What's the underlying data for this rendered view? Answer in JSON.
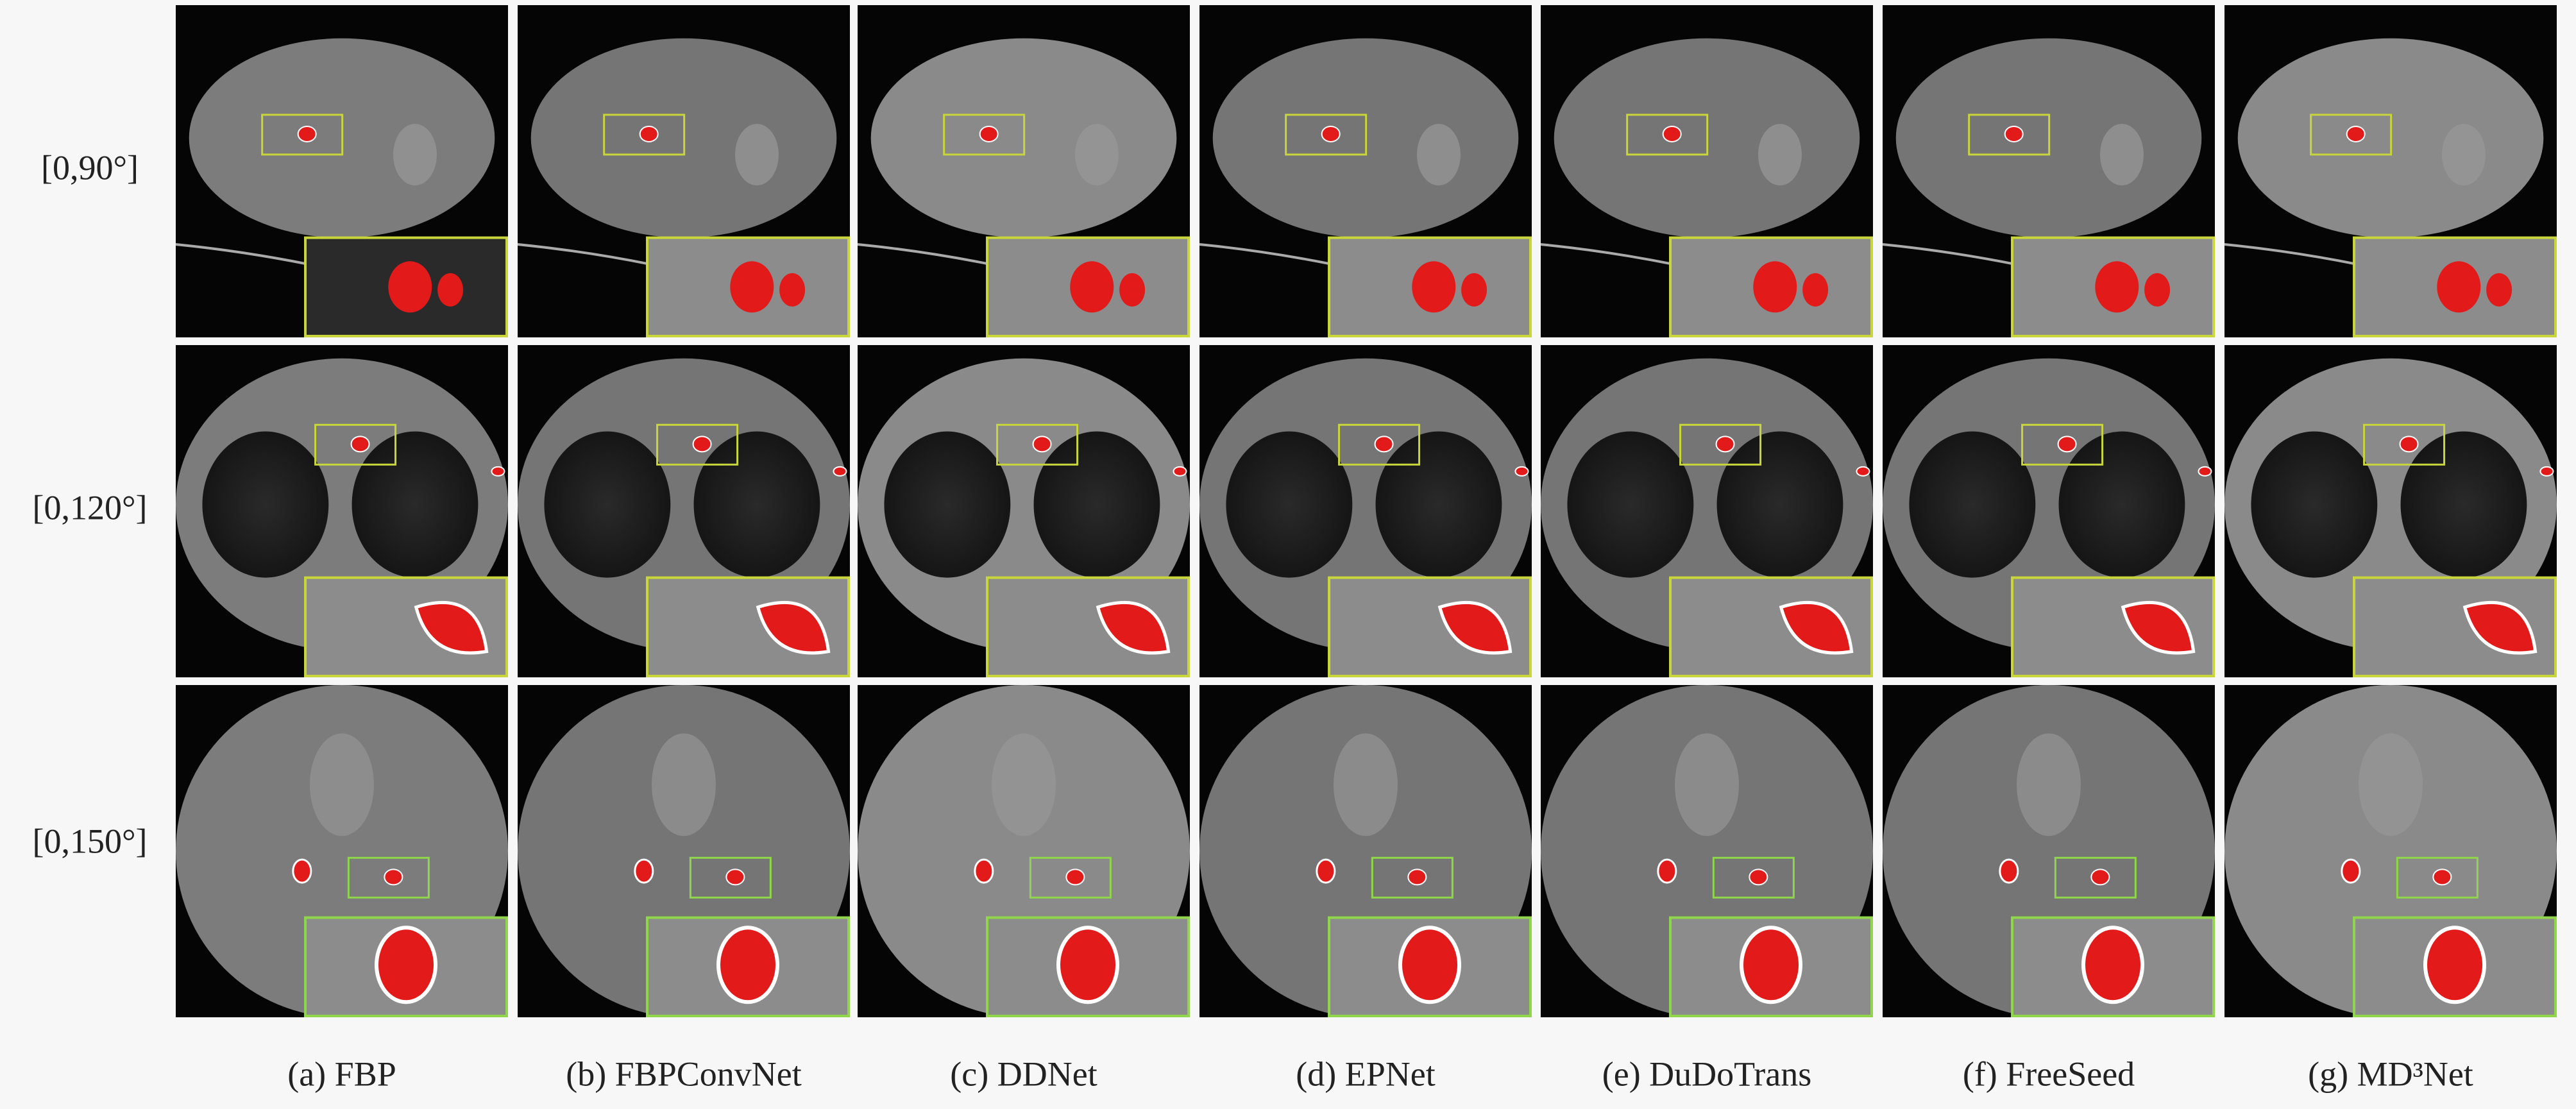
{
  "row_labels": [
    "[0,90°]",
    "[0,120°]",
    "[0,150°]"
  ],
  "captions": [
    "(a) FBP",
    "(b) FBPConvNet",
    "(c) DDNet",
    "(d) EPNet",
    "(e) DuDoTrans",
    "(f) FreeSeed",
    "(g) MD³Net"
  ]
}
